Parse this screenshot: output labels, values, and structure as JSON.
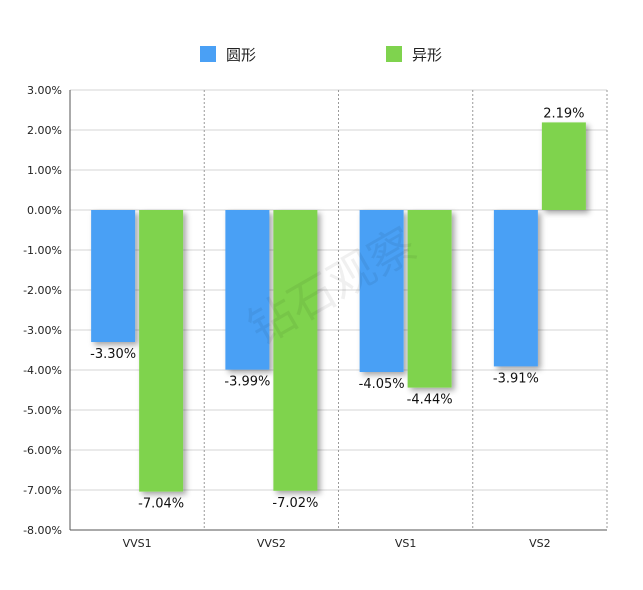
{
  "chart_data": {
    "type": "bar",
    "title": "",
    "xlabel": "",
    "ylabel": "",
    "categories": [
      "VVS1",
      "VVS2",
      "VS1",
      "VS2"
    ],
    "series": [
      {
        "name": "圆形",
        "color": "#4aa0f5",
        "values": [
          -3.3,
          -3.99,
          -4.05,
          -3.91
        ],
        "labels": [
          "-3.30%",
          "-3.99%",
          "-4.05%",
          "-3.91%"
        ]
      },
      {
        "name": "异形",
        "color": "#7fd34e",
        "values": [
          -7.04,
          -7.02,
          -4.44,
          2.19
        ],
        "labels": [
          "-7.04%",
          "-7.02%",
          "-4.44%",
          "2.19%"
        ]
      }
    ],
    "ylim": [
      -8,
      3
    ],
    "y_ticks": [
      3,
      2,
      1,
      0,
      -1,
      -2,
      -3,
      -4,
      -5,
      -6,
      -7,
      -8
    ],
    "y_tick_labels": [
      "3.00%",
      "2.00%",
      "1.00%",
      "0.00%",
      "-1.00%",
      "-2.00%",
      "-3.00%",
      "-4.00%",
      "-5.00%",
      "-6.00%",
      "-7.00%",
      "-8.00%"
    ],
    "grid": true,
    "legend_position": "top-center",
    "watermark": "钻石观察"
  }
}
